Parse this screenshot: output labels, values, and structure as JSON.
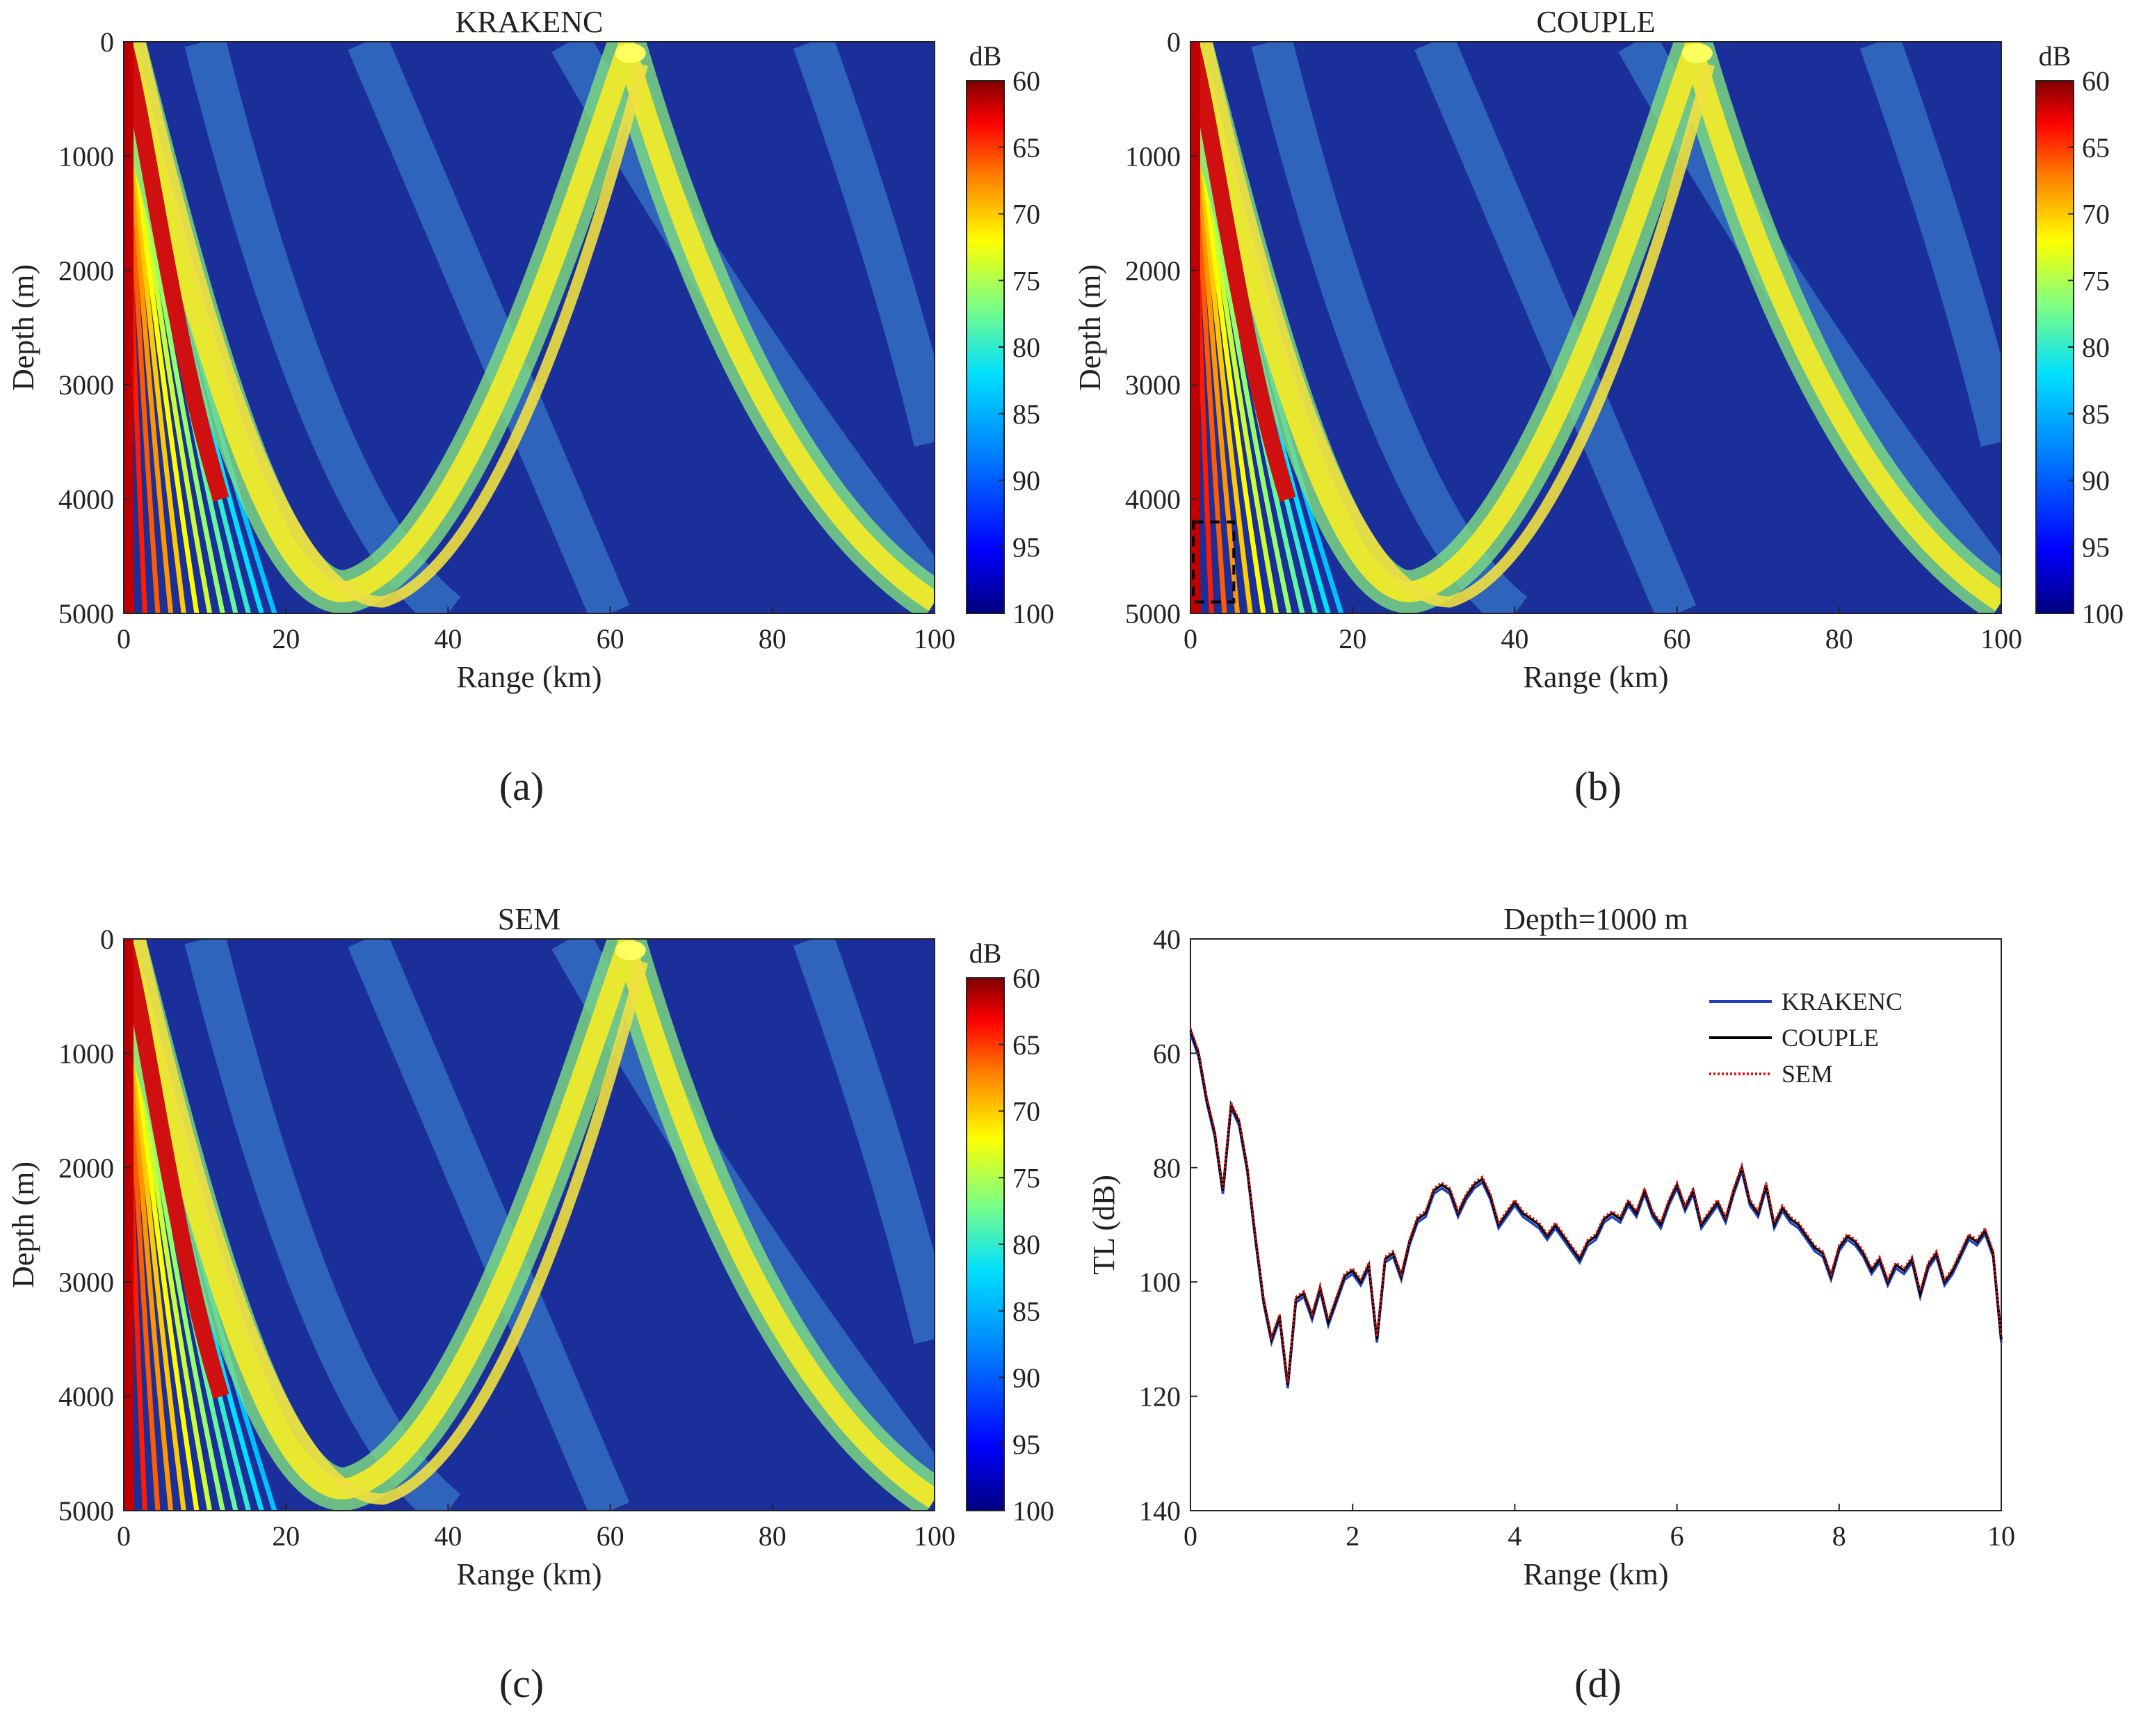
{
  "chart_data": [
    {
      "type": "heatmap",
      "panel": "(a)",
      "title": "KRAKENC",
      "xlabel": "Range (km)",
      "ylabel": "Depth (m)",
      "xlim": [
        0,
        100
      ],
      "ylim": [
        0,
        5000
      ],
      "xticks": [
        "0",
        "20",
        "40",
        "60",
        "80",
        "100"
      ],
      "yticks": [
        "0",
        "1000",
        "2000",
        "3000",
        "4000",
        "5000"
      ],
      "colorbar": {
        "unit": "dB",
        "range": [
          60,
          100
        ],
        "ticks": [
          "60",
          "65",
          "70",
          "75",
          "80",
          "85",
          "90",
          "95",
          "100"
        ]
      },
      "description_features": {
        "convergence_zone_range_km": 62,
        "bottom_turning_range_km": 25
      }
    },
    {
      "type": "heatmap",
      "panel": "(b)",
      "title": "COUPLE",
      "xlabel": "Range (km)",
      "ylabel": "Depth (m)",
      "xlim": [
        0,
        100
      ],
      "ylim": [
        0,
        5000
      ],
      "xticks": [
        "0",
        "20",
        "40",
        "60",
        "80",
        "100"
      ],
      "yticks": [
        "0",
        "1000",
        "2000",
        "3000",
        "4000",
        "5000"
      ],
      "colorbar": {
        "unit": "dB",
        "range": [
          60,
          100
        ],
        "ticks": [
          "60",
          "65",
          "70",
          "75",
          "80",
          "85",
          "90",
          "95",
          "100"
        ]
      },
      "highlight_box": {
        "range_km": [
          0,
          5
        ],
        "depth_m": [
          4200,
          4900
        ]
      }
    },
    {
      "type": "heatmap",
      "panel": "(c)",
      "title": "SEM",
      "xlabel": "Range (km)",
      "ylabel": "Depth (m)",
      "xlim": [
        0,
        100
      ],
      "ylim": [
        0,
        5000
      ],
      "xticks": [
        "0",
        "20",
        "40",
        "60",
        "80",
        "100"
      ],
      "yticks": [
        "0",
        "1000",
        "2000",
        "3000",
        "4000",
        "5000"
      ],
      "colorbar": {
        "unit": "dB",
        "range": [
          60,
          100
        ],
        "ticks": [
          "60",
          "65",
          "70",
          "75",
          "80",
          "85",
          "90",
          "95",
          "100"
        ]
      }
    },
    {
      "type": "line",
      "panel": "(d)",
      "title": "Depth=1000 m",
      "xlabel": "Range (km)",
      "ylabel": "TL (dB)",
      "xlim": [
        0,
        10
      ],
      "ylim": [
        40,
        140
      ],
      "y_inverted": true,
      "xticks": [
        "0",
        "2",
        "4",
        "6",
        "8",
        "10"
      ],
      "yticks": [
        "40",
        "60",
        "80",
        "100",
        "120",
        "140"
      ],
      "legend_position": "top-right",
      "series": [
        {
          "name": "KRAKENC",
          "color": "#2040c0",
          "style": "solid"
        },
        {
          "name": "COUPLE",
          "color": "#000000",
          "style": "solid"
        },
        {
          "name": "SEM",
          "color": "#e01010",
          "style": "dotted"
        }
      ],
      "x": [
        0,
        0.1,
        0.2,
        0.3,
        0.4,
        0.5,
        0.6,
        0.7,
        0.8,
        0.9,
        1.0,
        1.1,
        1.2,
        1.3,
        1.4,
        1.5,
        1.6,
        1.7,
        1.8,
        1.9,
        2.0,
        2.1,
        2.2,
        2.3,
        2.4,
        2.5,
        2.6,
        2.7,
        2.8,
        2.9,
        3.0,
        3.1,
        3.2,
        3.3,
        3.4,
        3.5,
        3.6,
        3.7,
        3.8,
        3.9,
        4.0,
        4.1,
        4.2,
        4.3,
        4.4,
        4.5,
        4.6,
        4.7,
        4.8,
        4.9,
        5.0,
        5.1,
        5.2,
        5.3,
        5.4,
        5.5,
        5.6,
        5.7,
        5.8,
        5.9,
        6.0,
        6.1,
        6.2,
        6.3,
        6.4,
        6.5,
        6.6,
        6.7,
        6.8,
        6.9,
        7.0,
        7.1,
        7.2,
        7.3,
        7.4,
        7.5,
        7.6,
        7.7,
        7.8,
        7.9,
        8.0,
        8.1,
        8.2,
        8.3,
        8.4,
        8.5,
        8.6,
        8.7,
        8.8,
        8.9,
        9.0,
        9.1,
        9.2,
        9.3,
        9.4,
        9.5,
        9.6,
        9.7,
        9.8,
        9.9,
        10.0
      ],
      "values": [
        56,
        60,
        68,
        74,
        84,
        69,
        72,
        80,
        92,
        103,
        110,
        106,
        118,
        103,
        102,
        106,
        101,
        107,
        103,
        99,
        98,
        100,
        97,
        110,
        96,
        95,
        99,
        93,
        89,
        88,
        84,
        83,
        84,
        88,
        85,
        83,
        82,
        85,
        90,
        88,
        86,
        88,
        89,
        90,
        92,
        90,
        92,
        94,
        96,
        93,
        92,
        89,
        88,
        89,
        86,
        88,
        84,
        88,
        90,
        86,
        83,
        87,
        84,
        90,
        88,
        86,
        89,
        84,
        80,
        86,
        88,
        83,
        90,
        87,
        89,
        90,
        92,
        94,
        95,
        99,
        94,
        92,
        93,
        95,
        98,
        96,
        100,
        97,
        98,
        96,
        102,
        97,
        95,
        100,
        98,
        95,
        92,
        93,
        91,
        95,
        110
      ]
    }
  ]
}
